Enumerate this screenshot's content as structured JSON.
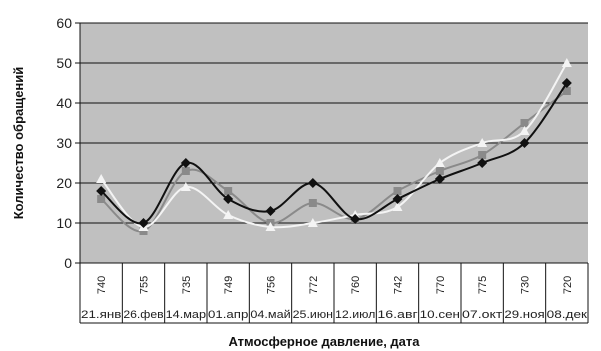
{
  "chart_data": {
    "type": "line",
    "title": "",
    "xlabel": "Атмосферное давление, дата",
    "ylabel": "Количество обращений",
    "ylim": [
      0,
      60
    ],
    "yticks": [
      0,
      10,
      20,
      30,
      40,
      50,
      60
    ],
    "grid": "horizontal",
    "legend": "none",
    "categories_pressure": [
      "740",
      "755",
      "735",
      "749",
      "756",
      "772",
      "760",
      "742",
      "770",
      "775",
      "730",
      "720"
    ],
    "categories_date": [
      "21.янв",
      "26.фев",
      "14.мар",
      "01.апр",
      "04.май",
      "25.июн",
      "12.июл",
      "16.авг",
      "10.сен",
      "07.окт",
      "29.ноя",
      "08.дек"
    ],
    "series": [
      {
        "marker": "diamond",
        "color": "#111111",
        "values": [
          18,
          10,
          25,
          16,
          13,
          20,
          11,
          16,
          21,
          25,
          30,
          45
        ]
      },
      {
        "marker": "square",
        "color": "#8a8a8a",
        "values": [
          16,
          8,
          23,
          18,
          10,
          15,
          11,
          18,
          23,
          27,
          35,
          43
        ]
      },
      {
        "marker": "triangle",
        "color": "#f4f4f4",
        "values": [
          21,
          9,
          19,
          12,
          9,
          10,
          12,
          14,
          25,
          30,
          33,
          50
        ]
      }
    ],
    "colors": {
      "plot_background": "#c0c0c0",
      "grid": "#111111"
    }
  }
}
